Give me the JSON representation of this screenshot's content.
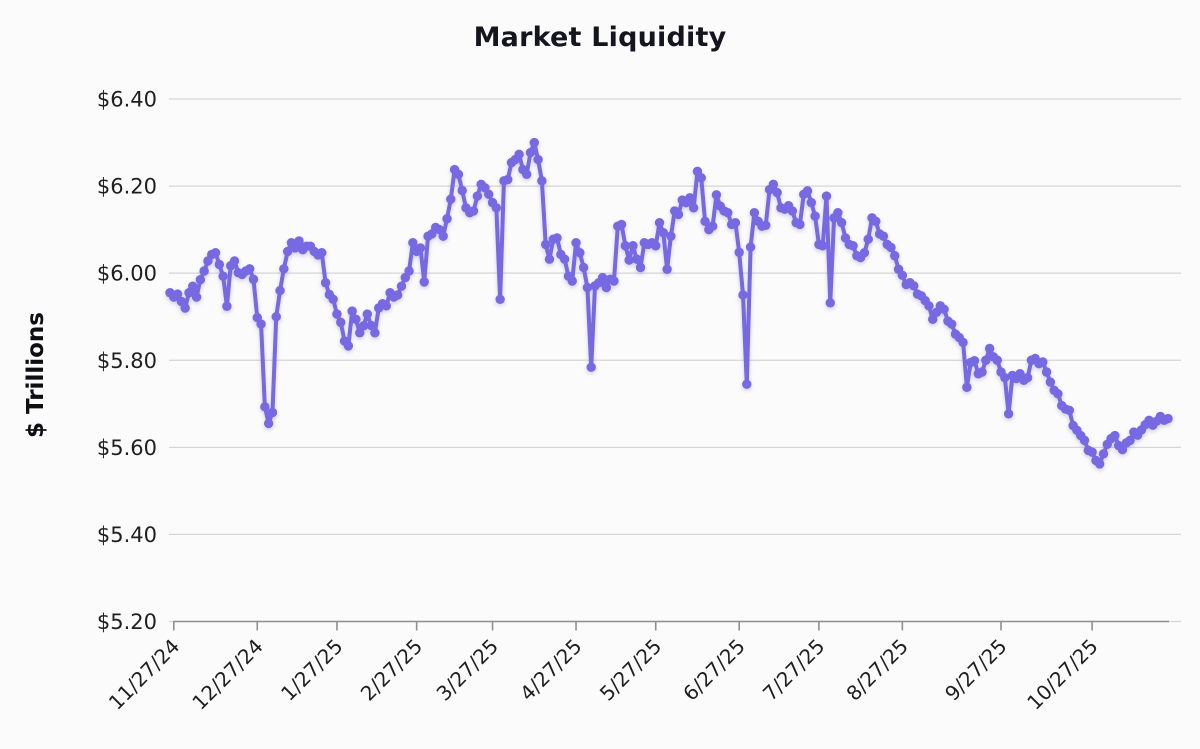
{
  "page": {
    "background": "#fcfbfb"
  },
  "chart_data": {
    "type": "line",
    "title": "Market Liquidity",
    "ylabel": "$ Trillions",
    "legend": "none",
    "grid": "horizontal",
    "marker_style": "circle",
    "series_color": "#7669e2",
    "axis_color": "#8f8f8f",
    "gridline_color": "#d6d6d6",
    "ylim": [
      5.2,
      6.4
    ],
    "y_ticks": [
      6.4,
      6.2,
      6.0,
      5.8,
      5.6,
      5.4,
      5.2
    ],
    "y_tick_labels": [
      "$6.40",
      "$6.20",
      "$6.00",
      "$5.80",
      "$5.60",
      "$5.40",
      "$5.20"
    ],
    "x_tick_labels": [
      "11/27/24",
      "12/27/24",
      "1/27/25",
      "2/27/25",
      "3/27/25",
      "4/27/25",
      "5/27/25",
      "6/27/25",
      "7/27/25",
      "8/27/25",
      "9/27/25",
      "10/27/25"
    ],
    "x_tick_indices": [
      1,
      23,
      44,
      65,
      85,
      107,
      128,
      150,
      171,
      193,
      219,
      243
    ],
    "values": [
      5.955,
      5.945,
      5.952,
      5.935,
      5.92,
      5.955,
      5.97,
      5.945,
      5.985,
      6.005,
      6.028,
      6.043,
      6.047,
      6.02,
      5.993,
      5.924,
      6.017,
      6.028,
      6.001,
      5.997,
      6.005,
      6.01,
      5.986,
      5.898,
      5.883,
      5.693,
      5.655,
      5.68,
      5.9,
      5.96,
      6.01,
      6.05,
      6.07,
      6.058,
      6.074,
      6.054,
      6.062,
      6.062,
      6.05,
      6.042,
      6.047,
      5.978,
      5.951,
      5.94,
      5.906,
      5.887,
      5.844,
      5.833,
      5.913,
      5.894,
      5.863,
      5.879,
      5.906,
      5.88,
      5.863,
      5.92,
      5.93,
      5.925,
      5.955,
      5.945,
      5.95,
      5.97,
      5.99,
      6.005,
      6.07,
      6.05,
      6.058,
      5.98,
      6.085,
      6.09,
      6.105,
      6.1,
      6.085,
      6.125,
      6.17,
      6.238,
      6.227,
      6.19,
      6.15,
      6.139,
      6.143,
      6.177,
      6.204,
      6.196,
      6.181,
      6.162,
      6.15,
      5.94,
      6.212,
      6.215,
      6.254,
      6.261,
      6.273,
      6.238,
      6.227,
      6.277,
      6.3,
      6.261,
      6.212,
      6.066,
      6.032,
      6.078,
      6.081,
      6.043,
      6.032,
      5.993,
      5.982,
      6.07,
      6.047,
      6.013,
      5.967,
      5.784,
      5.971,
      5.978,
      5.99,
      5.967,
      5.986,
      5.982,
      6.108,
      6.112,
      6.063,
      6.03,
      6.063,
      6.032,
      6.013,
      6.07,
      6.066,
      6.07,
      6.063,
      6.116,
      6.093,
      6.009,
      6.085,
      6.143,
      6.135,
      6.168,
      6.162,
      6.173,
      6.15,
      6.234,
      6.219,
      6.119,
      6.1,
      6.108,
      6.18,
      6.154,
      6.143,
      6.139,
      6.112,
      6.116,
      6.048,
      5.95,
      5.745,
      6.06,
      6.139,
      6.119,
      6.108,
      6.11,
      6.192,
      6.204,
      6.185,
      6.15,
      6.147,
      6.155,
      6.143,
      6.116,
      6.112,
      6.181,
      6.189,
      6.162,
      6.131,
      6.066,
      6.063,
      6.177,
      5.932,
      6.127,
      6.139,
      6.116,
      6.081,
      6.066,
      6.063,
      6.04,
      6.036,
      6.047,
      6.078,
      6.127,
      6.119,
      6.09,
      6.085,
      6.066,
      6.059,
      6.04,
      6.009,
      5.995,
      5.974,
      5.978,
      5.971,
      5.952,
      5.948,
      5.937,
      5.925,
      5.894,
      5.91,
      5.925,
      5.917,
      5.89,
      5.883,
      5.86,
      5.852,
      5.841,
      5.738,
      5.795,
      5.799,
      5.769,
      5.773,
      5.8,
      5.827,
      5.808,
      5.8,
      5.773,
      5.76,
      5.677,
      5.765,
      5.758,
      5.769,
      5.754,
      5.76,
      5.8,
      5.804,
      5.792,
      5.796,
      5.773,
      5.75,
      5.731,
      5.723,
      5.696,
      5.688,
      5.685,
      5.65,
      5.639,
      5.627,
      5.616,
      5.593,
      5.589,
      5.57,
      5.562,
      5.585,
      5.607,
      5.62,
      5.627,
      5.604,
      5.595,
      5.61,
      5.616,
      5.635,
      5.628,
      5.64,
      5.652,
      5.662,
      5.651,
      5.66,
      5.671,
      5.662,
      5.666
    ]
  }
}
